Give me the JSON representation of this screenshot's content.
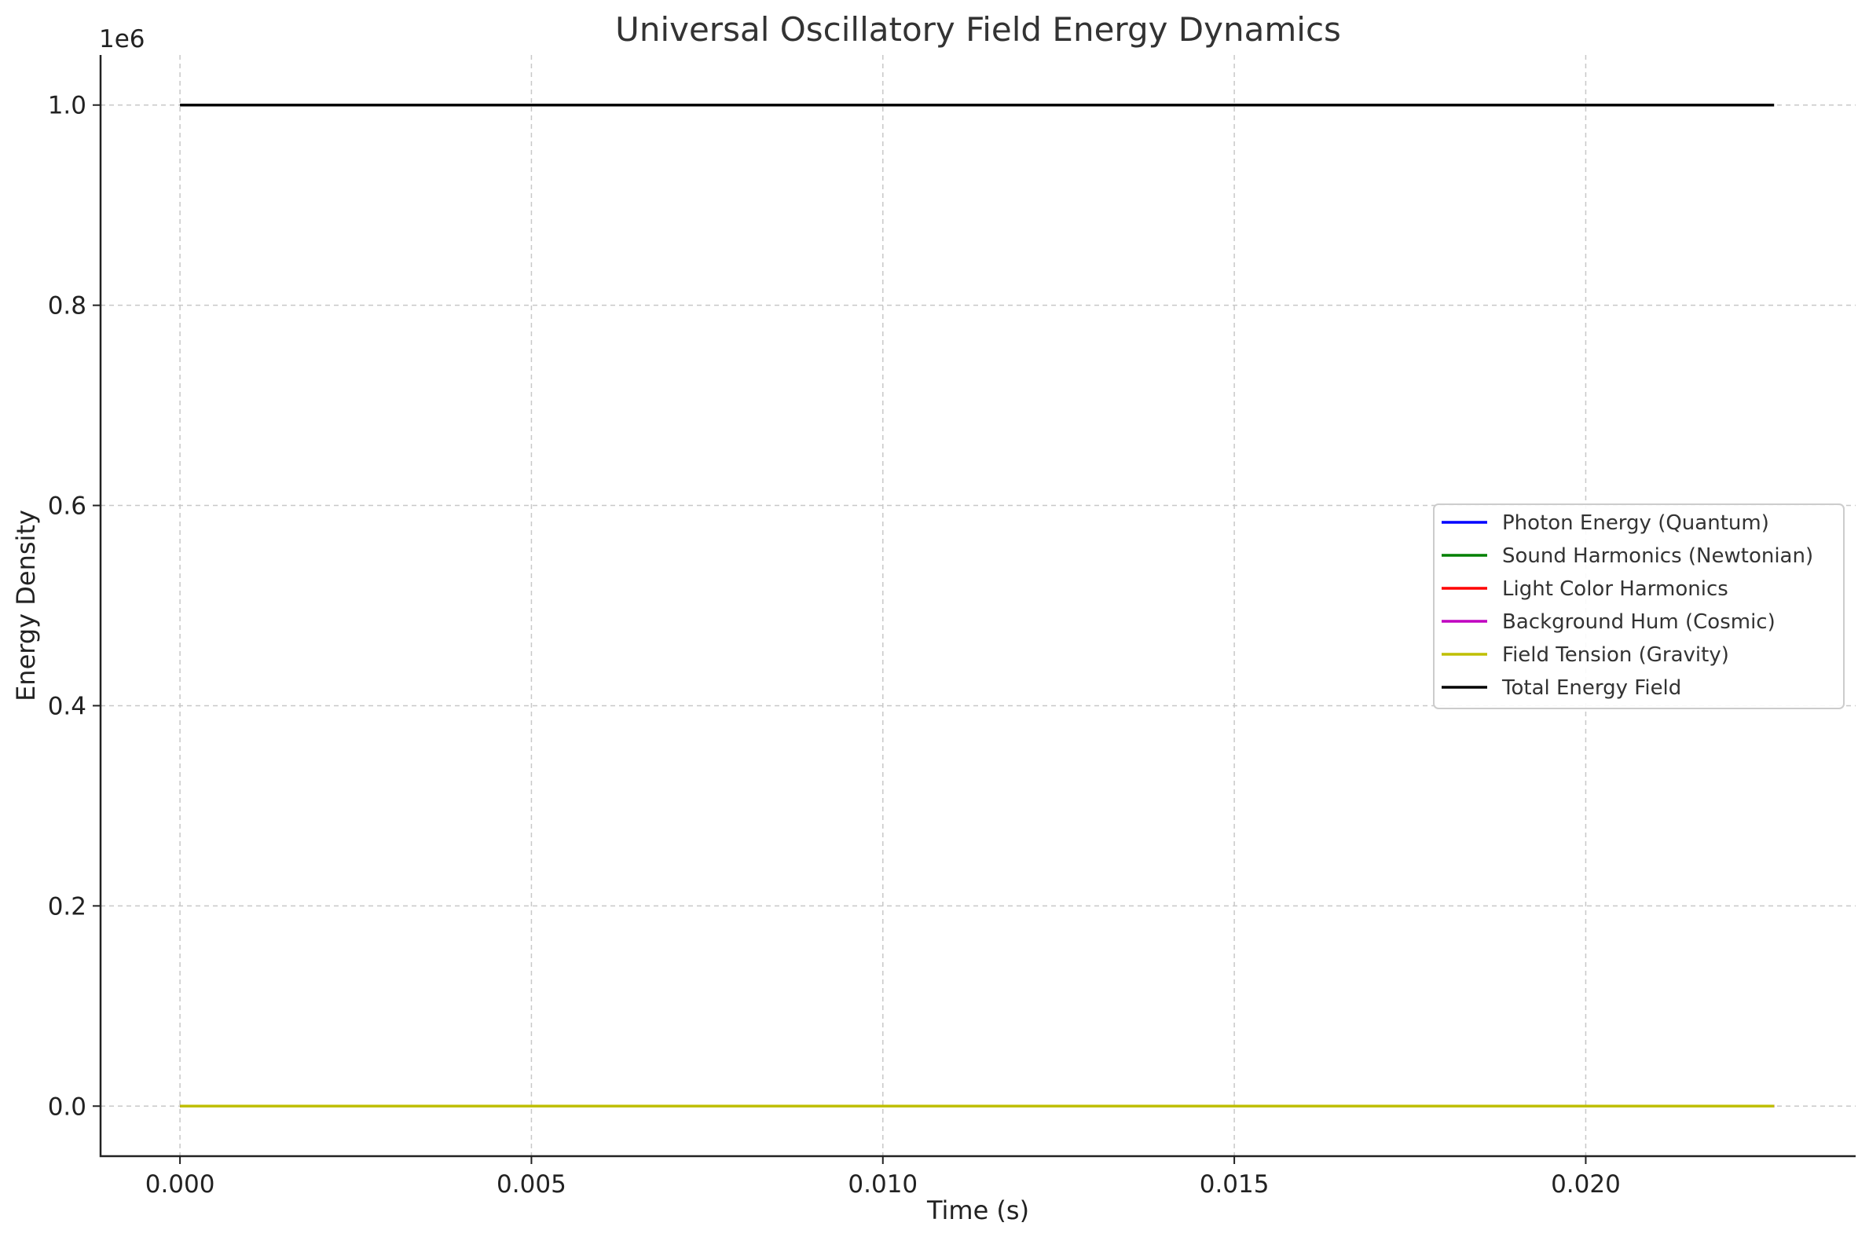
{
  "chart_data": {
    "type": "line",
    "title": "Universal Oscillatory Field Energy Dynamics",
    "xlabel": "Time (s)",
    "ylabel": "Energy Density",
    "y_offset_label": "1e6",
    "xlim": [
      -0.00113,
      0.02384
    ],
    "ylim": [
      -50000,
      1050000
    ],
    "x_ticks": [
      {
        "value": 0.0,
        "label": "0.000"
      },
      {
        "value": 0.005,
        "label": "0.005"
      },
      {
        "value": 0.01,
        "label": "0.010"
      },
      {
        "value": 0.015,
        "label": "0.015"
      },
      {
        "value": 0.02,
        "label": "0.020"
      }
    ],
    "y_ticks": [
      {
        "value": 0,
        "label": "0.0"
      },
      {
        "value": 200000,
        "label": "0.2"
      },
      {
        "value": 400000,
        "label": "0.4"
      },
      {
        "value": 600000,
        "label": "0.6"
      },
      {
        "value": 800000,
        "label": "0.8"
      },
      {
        "value": 1000000,
        "label": "1.0"
      }
    ],
    "grid": true,
    "legend_position": "center-right",
    "x": [
      0.0,
      0.02268
    ],
    "series": [
      {
        "name": "Photon Energy (Quantum)",
        "color": "#0000ff",
        "values": [
          0,
          0
        ]
      },
      {
        "name": "Sound Harmonics (Newtonian)",
        "color": "#008000",
        "values": [
          0,
          0
        ]
      },
      {
        "name": "Light Color Harmonics",
        "color": "#ff0000",
        "values": [
          0,
          0
        ]
      },
      {
        "name": "Background Hum (Cosmic)",
        "color": "#c000c0",
        "values": [
          0,
          0
        ]
      },
      {
        "name": "Field Tension (Gravity)",
        "color": "#bfbf00",
        "values": [
          0,
          0
        ]
      },
      {
        "name": "Total Energy Field",
        "color": "#000000",
        "values": [
          1000000,
          1000000
        ]
      }
    ]
  }
}
